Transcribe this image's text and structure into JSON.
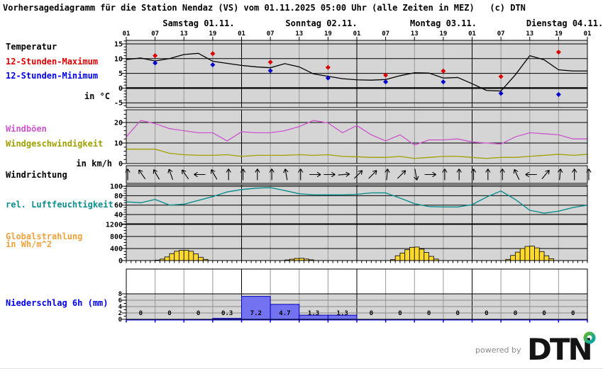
{
  "title": "Vorhersagediagramm für die Station Nendaz (VS) vom 01.11.2025 05:00 Uhr (alle Zeiten in MEZ)   (c) DTN",
  "days": [
    "Samstag 01.11.",
    "Sonntag 02.11.",
    "Montag 03.11.",
    "Dienstag 04.11."
  ],
  "hour_labels": [
    "01",
    "07",
    "13",
    "19",
    "01",
    "07",
    "13",
    "19",
    "01",
    "07",
    "13",
    "19",
    "01",
    "07",
    "13",
    "19",
    "01"
  ],
  "labels": {
    "temperature": "Temperatur",
    "max12h": "12-Stunden-Maximum",
    "min12h": "12-Stunden-Minimum",
    "temp_unit": "in °C",
    "gusts": "Windböen",
    "wind_speed": "Windgeschwindigkeit",
    "wind_unit": "in km/h",
    "wind_direction": "Windrichtung",
    "humidity": "rel. Luftfeuchtigkeit",
    "radiation_line1": "Globalstrahlung",
    "radiation_line2": "in Wh/m^2",
    "precipitation": "Niederschlag 6h (mm)"
  },
  "footer": {
    "powered_by": "powered by",
    "logo_text": "DTN"
  },
  "colors": {
    "panel_bg": "#d5d5d5",
    "grid_minor": "#999999",
    "grid_major": "#000000",
    "temp_line": "#000000",
    "temp_max": "#dd0000",
    "temp_min": "#0000cd",
    "gust": "#cc55cc",
    "wind_speed": "#a0a000",
    "humidity": "#0d8e8e",
    "radiation_fill": "#ffd92e",
    "radiation_stroke": "#000000",
    "precip_fill": "#7373f1",
    "precip_stroke": "#0000bb",
    "precip_axis": "#0000dd",
    "logo_green": "#5cb82e",
    "logo_teal": "#00a1b0",
    "logo_black": "#141414"
  },
  "chart_data": [
    {
      "type": "line",
      "name": "temperature",
      "title": "Temperatur",
      "ylabel": "in °C",
      "yticks": [
        15,
        10,
        5,
        0,
        -5
      ],
      "ylim": [
        -6.6,
        16.2
      ],
      "x_start_hour": 0,
      "x_step_hours": 3,
      "values": [
        9.7,
        10.2,
        9.2,
        10.0,
        11.4,
        11.8,
        9.1,
        8.4,
        7.7,
        7.2,
        6.9,
        8.3,
        7.2,
        4.8,
        4.0,
        3.2,
        2.8,
        2.7,
        2.9,
        4.2,
        5.2,
        5.1,
        3.4,
        3.6,
        1.5,
        -0.8,
        -1.0,
        4.5,
        11.0,
        9.6,
        6.2,
        5.8,
        5.8
      ],
      "max_markers": {
        "hours": [
          6,
          18,
          30,
          42,
          54,
          66,
          78,
          90
        ],
        "values": [
          11.0,
          11.7,
          8.8,
          7.0,
          4.4,
          5.8,
          3.9,
          12.2
        ]
      },
      "min_markers": {
        "hours": [
          6,
          18,
          30,
          42,
          54,
          66,
          78,
          90
        ],
        "values": [
          8.5,
          7.9,
          5.9,
          3.4,
          2.1,
          2.1,
          -1.8,
          -2.2
        ]
      }
    },
    {
      "type": "line",
      "name": "wind",
      "ylabel": "in km/h",
      "yticks": [
        20,
        10,
        0
      ],
      "ylim": [
        0,
        26.2
      ],
      "x_step_hours": 3,
      "series": [
        {
          "name": "Windböen",
          "values": [
            13,
            21,
            19.5,
            17,
            16,
            15,
            15,
            11,
            15.5,
            15,
            15,
            16,
            18,
            21,
            19.8,
            15,
            18.5,
            14,
            11,
            14,
            9,
            11.5,
            11.5,
            12,
            10.5,
            10,
            9.5,
            13,
            15,
            14.5,
            14,
            12,
            12
          ]
        },
        {
          "name": "Windgeschwindigkeit",
          "values": [
            7,
            7,
            7,
            5,
            4.3,
            4,
            4,
            4.3,
            3.5,
            4,
            4,
            4,
            4.3,
            4,
            4.3,
            3.5,
            3.3,
            3,
            3,
            3.5,
            2.5,
            3,
            3.5,
            3.5,
            3,
            2.5,
            3,
            3,
            3.5,
            4,
            4.5,
            4,
            4.5
          ]
        }
      ]
    },
    {
      "type": "wind-direction",
      "name": "wind_direction",
      "x_step_hours": 3,
      "angles_deg": [
        0,
        -35,
        -30,
        -20,
        -35,
        -90,
        -30,
        0,
        0,
        0,
        0,
        -10,
        0,
        90,
        90,
        85,
        45,
        45,
        5,
        45,
        170,
        90,
        0,
        0,
        0,
        0,
        0,
        -25,
        -90,
        40,
        5,
        0,
        0
      ]
    },
    {
      "type": "line",
      "name": "humidity",
      "yticks": [
        100,
        80,
        60,
        40
      ],
      "ylim": [
        20,
        106
      ],
      "x_step_hours": 3,
      "values": [
        67,
        65,
        72,
        60,
        62,
        70,
        78,
        88,
        93,
        96,
        97,
        91,
        84,
        82,
        82,
        82,
        83,
        86,
        86,
        75,
        63,
        57,
        56,
        56,
        61,
        77,
        90,
        72,
        49,
        43,
        47,
        55,
        60
      ]
    },
    {
      "type": "bar",
      "name": "radiation",
      "ylabel": "in Wh/m^2",
      "yticks": [
        1200,
        800,
        400,
        0
      ],
      "ylim": [
        0,
        1200
      ],
      "bar_width_hours": 1,
      "bar_hours": [
        6,
        7,
        8,
        9,
        10,
        11,
        12,
        13,
        14,
        15,
        16,
        33,
        34,
        35,
        36,
        37,
        38,
        55,
        56,
        57,
        58,
        59,
        60,
        61,
        62,
        63,
        64,
        79,
        80,
        81,
        82,
        83,
        84,
        85,
        86,
        87,
        88
      ],
      "bar_values": [
        15,
        50,
        120,
        230,
        310,
        340,
        340,
        310,
        220,
        110,
        40,
        20,
        45,
        70,
        75,
        50,
        25,
        30,
        160,
        250,
        360,
        440,
        450,
        380,
        270,
        140,
        50,
        40,
        170,
        280,
        400,
        470,
        480,
        420,
        300,
        160,
        60
      ]
    },
    {
      "type": "bar",
      "name": "precipitation",
      "ylabel": "Niederschlag 6h (mm)",
      "yticks": [
        8,
        6,
        4,
        2,
        0
      ],
      "ylim": [
        0,
        15.8
      ],
      "bin_hours": 6,
      "values": [
        0,
        0,
        0,
        0.3,
        7.2,
        4.7,
        1.3,
        1.3,
        0,
        0,
        0,
        0,
        0,
        0,
        0,
        0
      ],
      "value_labels": [
        "0",
        "0",
        "0",
        "0.3",
        "7.2",
        "4.7",
        "1.3",
        "1.3",
        "0",
        "0",
        "0",
        "0",
        "0",
        "0",
        "0",
        "0"
      ]
    }
  ]
}
